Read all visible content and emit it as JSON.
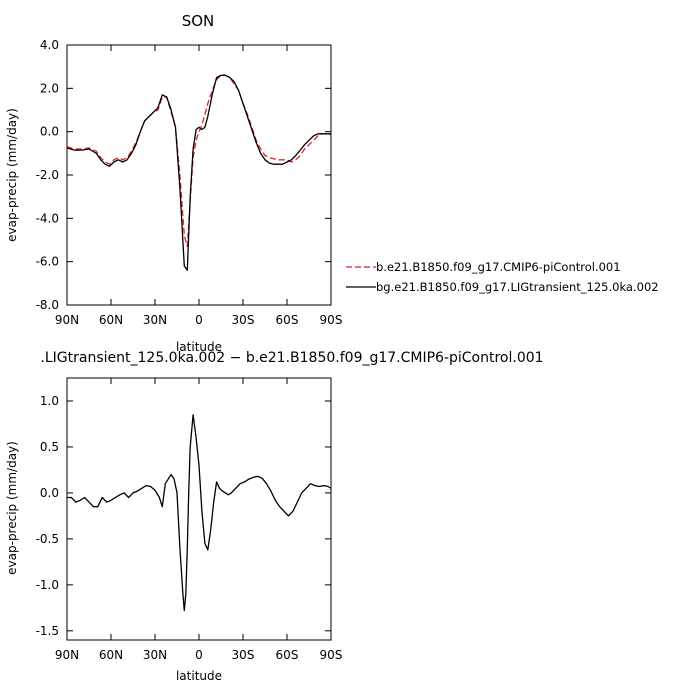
{
  "chart_data": [
    {
      "type": "line",
      "title": "SON",
      "xlabel": "latitude",
      "ylabel": "evap-precip (mm/day)",
      "xlim": [
        90,
        -90
      ],
      "ylim": [
        -8,
        4
      ],
      "x_ticks": [
        90,
        60,
        30,
        0,
        -30,
        -60,
        -90
      ],
      "x_tick_labels": [
        "90N",
        "60N",
        "30N",
        "0",
        "30S",
        "60S",
        "90S"
      ],
      "y_ticks": [
        -8,
        -6,
        -4,
        -2,
        0,
        2,
        4
      ],
      "y_tick_labels": [
        "-8.0",
        "-6.0",
        "-4.0",
        "-2.0",
        "0.0",
        "2.0",
        "4.0"
      ],
      "legend_position": "right",
      "series": [
        {
          "name": "b.e21.B1850.f09_g17.CMIP6-piControl.001",
          "color": "#dd2222",
          "style": "dashed",
          "x": [
            90,
            85,
            80,
            75,
            70,
            67,
            64,
            61,
            58,
            55,
            52,
            49,
            46,
            43,
            40,
            37,
            34,
            31,
            28,
            25,
            22,
            19,
            16,
            13,
            10,
            8,
            6,
            4,
            2,
            0,
            -2,
            -4,
            -6,
            -9,
            -12,
            -15,
            -18,
            -21,
            -24,
            -27,
            -30,
            -33,
            -36,
            -39,
            -42,
            -45,
            -48,
            -51,
            -54,
            -57,
            -60,
            -63,
            -66,
            -69,
            -72,
            -75,
            -78,
            -81,
            -84,
            -87,
            -90
          ],
          "y": [
            -0.7,
            -0.8,
            -0.8,
            -0.75,
            -0.9,
            -1.2,
            -1.4,
            -1.5,
            -1.3,
            -1.2,
            -1.3,
            -1.2,
            -0.9,
            -0.5,
            0.0,
            0.5,
            0.7,
            0.9,
            1.0,
            1.6,
            1.6,
            0.9,
            0.2,
            -2.0,
            -4.8,
            -5.3,
            -3.2,
            -1.2,
            -0.4,
            0.0,
            0.3,
            0.8,
            1.3,
            1.9,
            2.4,
            2.6,
            2.6,
            2.5,
            2.2,
            1.9,
            1.3,
            0.8,
            0.2,
            -0.4,
            -0.8,
            -1.1,
            -1.2,
            -1.25,
            -1.3,
            -1.3,
            -1.3,
            -1.4,
            -1.3,
            -1.1,
            -0.8,
            -0.6,
            -0.4,
            -0.2,
            -0.1,
            -0.1,
            -0.15
          ]
        },
        {
          "name": "bg.e21.B1850.f09_g17.LIGtransient_125.0ka.002",
          "color": "#000000",
          "style": "solid",
          "x": [
            90,
            85,
            80,
            75,
            70,
            67,
            64,
            61,
            58,
            55,
            52,
            49,
            46,
            43,
            40,
            37,
            34,
            31,
            28,
            25,
            22,
            19,
            16,
            13,
            10,
            8,
            6,
            4,
            2,
            0,
            -2,
            -4,
            -6,
            -9,
            -12,
            -15,
            -18,
            -21,
            -24,
            -27,
            -30,
            -33,
            -36,
            -39,
            -42,
            -45,
            -48,
            -51,
            -54,
            -57,
            -60,
            -63,
            -66,
            -69,
            -72,
            -75,
            -78,
            -81,
            -84,
            -87,
            -90
          ],
          "y": [
            -0.75,
            -0.85,
            -0.85,
            -0.8,
            -1.0,
            -1.3,
            -1.5,
            -1.6,
            -1.4,
            -1.3,
            -1.4,
            -1.3,
            -1.0,
            -0.6,
            0.0,
            0.5,
            0.7,
            0.9,
            1.1,
            1.7,
            1.6,
            1.0,
            0.2,
            -2.6,
            -6.2,
            -6.4,
            -3.0,
            -0.8,
            0.1,
            0.2,
            0.1,
            0.2,
            0.7,
            1.7,
            2.5,
            2.6,
            2.6,
            2.5,
            2.3,
            1.9,
            1.3,
            0.7,
            0.1,
            -0.5,
            -1.0,
            -1.3,
            -1.45,
            -1.5,
            -1.5,
            -1.5,
            -1.4,
            -1.3,
            -1.1,
            -0.85,
            -0.6,
            -0.4,
            -0.2,
            -0.1,
            -0.1,
            -0.1,
            -0.1
          ]
        }
      ]
    },
    {
      "type": "line",
      "title": ".LIGtransient_125.0ka.002 − b.e21.B1850.f09_g17.CMIP6-piControl.001",
      "xlabel": "latitude",
      "ylabel": "evap-precip (mm/day)",
      "xlim": [
        90,
        -90
      ],
      "ylim": [
        -1.6,
        1.25
      ],
      "x_ticks": [
        90,
        60,
        30,
        0,
        -30,
        -60,
        -90
      ],
      "x_tick_labels": [
        "90N",
        "60N",
        "30N",
        "0",
        "30S",
        "60S",
        "90S"
      ],
      "y_ticks": [
        -1.5,
        -1.0,
        -0.5,
        0.0,
        0.5,
        1.0
      ],
      "y_tick_labels": [
        "-1.5",
        "-1.0",
        "-0.5",
        "0.0",
        "0.5",
        "1.0"
      ],
      "series": [
        {
          "name": "",
          "color": "#000000",
          "style": "solid",
          "x": [
            90,
            87,
            84,
            81,
            78,
            75,
            72,
            69,
            66,
            63,
            60,
            57,
            54,
            51,
            48,
            45,
            42,
            39,
            36,
            33,
            30,
            27,
            25,
            23,
            21,
            19,
            17,
            15,
            13,
            11,
            10,
            9,
            8,
            7,
            6,
            4,
            2,
            0,
            -2,
            -4,
            -6,
            -8,
            -10,
            -12,
            -14,
            -16,
            -18,
            -20,
            -22,
            -25,
            -28,
            -31,
            -34,
            -37,
            -40,
            -43,
            -46,
            -49,
            -52,
            -55,
            -58,
            -61,
            -64,
            -67,
            -70,
            -73,
            -76,
            -79,
            -82,
            -85,
            -88,
            -90
          ],
          "y": [
            -0.05,
            -0.05,
            -0.1,
            -0.08,
            -0.05,
            -0.1,
            -0.15,
            -0.15,
            -0.05,
            -0.1,
            -0.08,
            -0.05,
            -0.02,
            0.0,
            -0.05,
            0.0,
            0.02,
            0.05,
            0.08,
            0.07,
            0.03,
            -0.05,
            -0.15,
            0.1,
            0.15,
            0.2,
            0.15,
            0.0,
            -0.6,
            -1.1,
            -1.28,
            -1.1,
            -0.6,
            0.0,
            0.5,
            0.85,
            0.6,
            0.3,
            -0.2,
            -0.55,
            -0.62,
            -0.4,
            -0.1,
            0.12,
            0.05,
            0.02,
            0.0,
            -0.02,
            0.0,
            0.05,
            0.1,
            0.12,
            0.15,
            0.17,
            0.18,
            0.16,
            0.1,
            0.02,
            -0.08,
            -0.15,
            -0.2,
            -0.25,
            -0.2,
            -0.1,
            0.0,
            0.05,
            0.1,
            0.08,
            0.07,
            0.08,
            0.07,
            0.05
          ]
        }
      ]
    }
  ]
}
